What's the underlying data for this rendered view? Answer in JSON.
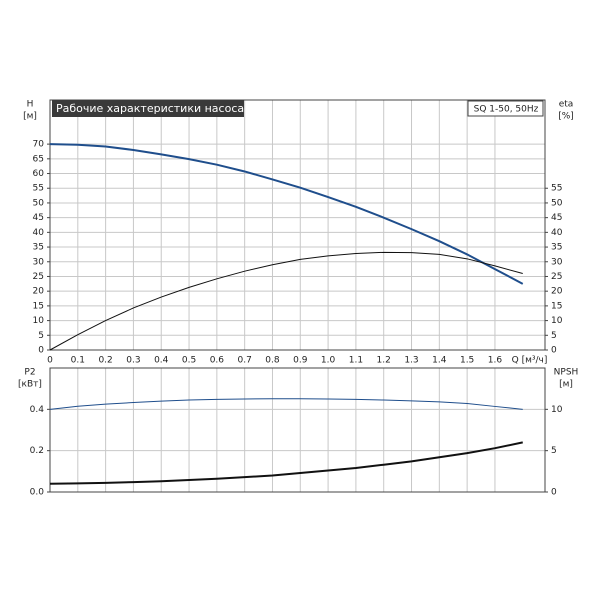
{
  "chart_data": [
    {
      "type": "line",
      "title": "Рабочие характеристики насоса",
      "subtitle": "SQ 1-50, 50Hz",
      "ylabel": {
        "name": "H",
        "unit": "[м]"
      },
      "y2label": {
        "name": "eta",
        "unit": "[%]"
      },
      "xlabel": "Q [м³/ч]",
      "x": [
        0,
        0.1,
        0.2,
        0.3,
        0.4,
        0.5,
        0.6,
        0.7,
        0.8,
        0.9,
        1.0,
        1.1,
        1.2,
        1.3,
        1.4,
        1.5,
        1.6,
        1.7
      ],
      "series": [
        {
          "color": "#1f4e8c",
          "values": [
            70,
            69.8,
            69.2,
            68,
            66.5,
            64.9,
            63,
            60.7,
            58,
            55.2,
            52,
            48.7,
            45,
            41.1,
            37,
            32.5,
            27.5,
            22.5
          ]
        },
        {
          "color": "#111111",
          "axis": "y2",
          "values": [
            0,
            5.2,
            10,
            14.3,
            18,
            21.3,
            24.2,
            26.8,
            29,
            30.8,
            32,
            32.8,
            33.2,
            33.1,
            32.5,
            31,
            28.6,
            26
          ]
        }
      ],
      "xlim": [
        0,
        1.78
      ],
      "xticks": [
        0,
        0.1,
        0.2,
        0.3,
        0.4,
        0.5,
        0.6,
        0.7,
        0.8,
        0.9,
        {
          "value": 1,
          "label": "1.0"
        },
        1.1,
        1.2,
        1.3,
        1.4,
        1.5,
        1.6
      ],
      "ylim": [
        0,
        85
      ],
      "yticks": [
        0,
        5,
        10,
        15,
        20,
        25,
        30,
        35,
        40,
        45,
        50,
        55,
        60,
        65,
        70
      ],
      "y2lim": [
        0,
        85
      ],
      "y2ticks": [
        0,
        5,
        10,
        15,
        20,
        25,
        30,
        35,
        40,
        45,
        50,
        55
      ],
      "grid": true
    },
    {
      "type": "line",
      "ylabel": {
        "name": "P2",
        "unit": "[кВт]"
      },
      "y2label": {
        "name": "NPSH",
        "unit": "[м]"
      },
      "x": [
        0,
        0.1,
        0.2,
        0.3,
        0.4,
        0.5,
        0.6,
        0.7,
        0.8,
        0.9,
        1.0,
        1.1,
        1.2,
        1.3,
        1.4,
        1.5,
        1.6,
        1.7
      ],
      "series": [
        {
          "color": "#1f4e8c",
          "values": [
            0.4,
            0.415,
            0.425,
            0.433,
            0.44,
            0.445,
            0.448,
            0.45,
            0.451,
            0.451,
            0.45,
            0.448,
            0.445,
            0.441,
            0.436,
            0.428,
            0.414,
            0.4
          ]
        },
        {
          "color": "#111111",
          "axis": "y2",
          "values": [
            1.0,
            1.05,
            1.1,
            1.2,
            1.3,
            1.45,
            1.6,
            1.8,
            2.0,
            2.3,
            2.6,
            2.9,
            3.3,
            3.7,
            4.2,
            4.7,
            5.3,
            6.0
          ]
        }
      ],
      "xlim": [
        0,
        1.78
      ],
      "ylim": [
        0,
        0.6
      ],
      "yticks": [
        {
          "value": 0,
          "label": "0.0"
        },
        0.2,
        0.4
      ],
      "y2lim": [
        0,
        15
      ],
      "y2ticks": [
        0,
        5,
        10
      ],
      "grid": true
    }
  ]
}
